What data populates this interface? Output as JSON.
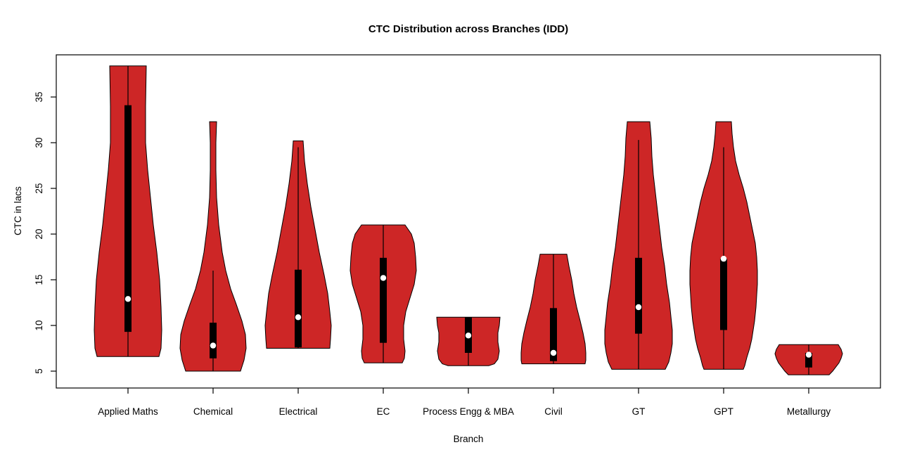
{
  "chart_data": {
    "type": "violin",
    "title": "CTC Distribution across Branches (IDD)",
    "xlabel": "Branch",
    "ylabel": "CTC in lacs",
    "ylim": [
      2.8,
      39.6
    ],
    "yticks": [
      5,
      10,
      15,
      20,
      25,
      30,
      35
    ],
    "grid": false,
    "legend": "none",
    "colors": {
      "violin_fill": "#CD2626",
      "violin_border": "#000000",
      "iqr_box": "#000000",
      "median_dot": "#FFFFFF",
      "background": "#FFFFFF",
      "text": "#000000"
    },
    "categories": [
      "Applied Maths",
      "Chemical",
      "Electrical",
      "EC",
      "Process Engg & MBA",
      "Civil",
      "GT",
      "GPT",
      "Metallurgy"
    ],
    "violins": [
      {
        "label": "Applied Maths",
        "range": [
          6.6,
          38.4
        ],
        "whisker": [
          6.6,
          38.4
        ],
        "q1": 9.3,
        "median": 12.9,
        "q3": 34.1,
        "profile": [
          [
            38.4,
            26
          ],
          [
            34,
            25
          ],
          [
            30,
            25
          ],
          [
            27,
            28
          ],
          [
            24,
            32
          ],
          [
            21,
            36
          ],
          [
            18,
            41
          ],
          [
            15,
            45
          ],
          [
            12,
            47
          ],
          [
            9.5,
            48
          ],
          [
            7.5,
            47
          ],
          [
            6.6,
            44
          ]
        ]
      },
      {
        "label": "Chemical",
        "range": [
          5.0,
          32.3
        ],
        "whisker": [
          5.0,
          16.0
        ],
        "q1": 6.4,
        "median": 7.8,
        "q3": 10.3,
        "profile": [
          [
            32.3,
            5
          ],
          [
            30,
            4
          ],
          [
            27,
            4
          ],
          [
            24,
            5
          ],
          [
            21,
            8
          ],
          [
            18,
            13
          ],
          [
            16,
            18
          ],
          [
            14,
            25
          ],
          [
            12.3,
            33
          ],
          [
            10.5,
            41
          ],
          [
            9,
            46
          ],
          [
            7.5,
            47
          ],
          [
            6.2,
            44
          ],
          [
            5.0,
            39
          ]
        ]
      },
      {
        "label": "Electrical",
        "range": [
          7.5,
          30.2
        ],
        "whisker": [
          7.5,
          29.5
        ],
        "q1": 7.6,
        "median": 10.9,
        "q3": 16.1,
        "profile": [
          [
            30.2,
            7
          ],
          [
            28,
            9
          ],
          [
            25.5,
            13
          ],
          [
            23,
            18
          ],
          [
            20.5,
            24
          ],
          [
            18,
            30
          ],
          [
            15.5,
            37
          ],
          [
            13.5,
            42
          ],
          [
            11.5,
            45
          ],
          [
            10,
            47
          ],
          [
            8.5,
            46
          ],
          [
            7.5,
            45
          ]
        ]
      },
      {
        "label": "EC",
        "range": [
          5.9,
          21.0
        ],
        "whisker": [
          5.9,
          21.0
        ],
        "q1": 8.1,
        "median": 15.2,
        "q3": 17.4,
        "profile": [
          [
            21,
            31
          ],
          [
            20,
            40
          ],
          [
            19,
            44
          ],
          [
            17.5,
            46
          ],
          [
            16,
            47
          ],
          [
            14.5,
            44
          ],
          [
            13,
            38
          ],
          [
            11.5,
            32
          ],
          [
            10,
            29
          ],
          [
            8.5,
            29
          ],
          [
            7.2,
            31
          ],
          [
            6.4,
            30
          ],
          [
            5.9,
            27
          ]
        ]
      },
      {
        "label": "Process Engg & MBA",
        "range": [
          5.6,
          10.9
        ],
        "whisker": [
          5.6,
          10.9
        ],
        "q1": 7.0,
        "median": 8.9,
        "q3": 10.9,
        "profile": [
          [
            10.9,
            45
          ],
          [
            10,
            44
          ],
          [
            9.2,
            42
          ],
          [
            8.2,
            42
          ],
          [
            7.2,
            44
          ],
          [
            6.3,
            42
          ],
          [
            5.8,
            37
          ],
          [
            5.6,
            29
          ]
        ]
      },
      {
        "label": "Civil",
        "range": [
          5.8,
          17.8
        ],
        "whisker": [
          5.8,
          17.8
        ],
        "q1": 6.1,
        "median": 7.0,
        "q3": 11.9,
        "profile": [
          [
            17.8,
            19
          ],
          [
            16.5,
            22
          ],
          [
            15,
            26
          ],
          [
            13.5,
            29
          ],
          [
            12,
            33
          ],
          [
            10.5,
            38
          ],
          [
            9.2,
            42
          ],
          [
            8,
            45
          ],
          [
            7,
            46
          ],
          [
            6.2,
            46
          ],
          [
            5.8,
            45
          ]
        ]
      },
      {
        "label": "GT",
        "range": [
          5.2,
          32.3
        ],
        "whisker": [
          5.2,
          30.3
        ],
        "q1": 9.1,
        "median": 12.0,
        "q3": 17.4,
        "profile": [
          [
            32.3,
            16
          ],
          [
            30.5,
            18
          ],
          [
            28.5,
            19
          ],
          [
            26.5,
            21
          ],
          [
            24.5,
            24
          ],
          [
            22.5,
            27
          ],
          [
            20.5,
            30
          ],
          [
            18.5,
            33
          ],
          [
            16.5,
            37
          ],
          [
            14.5,
            40
          ],
          [
            12.5,
            44
          ],
          [
            11,
            46
          ],
          [
            9.5,
            48
          ],
          [
            8,
            48
          ],
          [
            7,
            46
          ],
          [
            6,
            43
          ],
          [
            5.2,
            38
          ]
        ]
      },
      {
        "label": "GPT",
        "range": [
          5.2,
          32.3
        ],
        "whisker": [
          5.2,
          29.5
        ],
        "q1": 9.5,
        "median": 17.3,
        "q3": 17.3,
        "profile": [
          [
            32.3,
            11
          ],
          [
            31,
            12
          ],
          [
            29.5,
            14
          ],
          [
            28,
            17
          ],
          [
            26.5,
            22
          ],
          [
            25,
            28
          ],
          [
            23.5,
            33
          ],
          [
            22,
            37
          ],
          [
            20.5,
            41
          ],
          [
            19,
            45
          ],
          [
            17.5,
            47
          ],
          [
            16,
            48
          ],
          [
            14.5,
            48
          ],
          [
            13.3,
            47
          ],
          [
            12,
            46
          ],
          [
            10.5,
            44
          ],
          [
            9.5,
            42
          ],
          [
            8.5,
            40
          ],
          [
            7.5,
            37
          ],
          [
            6.5,
            33
          ],
          [
            5.6,
            30
          ],
          [
            5.2,
            28
          ]
        ]
      },
      {
        "label": "Metallurgy",
        "range": [
          4.6,
          7.9
        ],
        "whisker": [
          4.6,
          7.9
        ],
        "q1": 5.4,
        "median": 6.8,
        "q3": 7.0,
        "profile": [
          [
            7.9,
            42
          ],
          [
            7.4,
            46
          ],
          [
            6.9,
            48
          ],
          [
            6.4,
            46
          ],
          [
            5.9,
            43
          ],
          [
            5.4,
            38
          ],
          [
            5.0,
            34
          ],
          [
            4.6,
            29
          ]
        ]
      }
    ]
  }
}
